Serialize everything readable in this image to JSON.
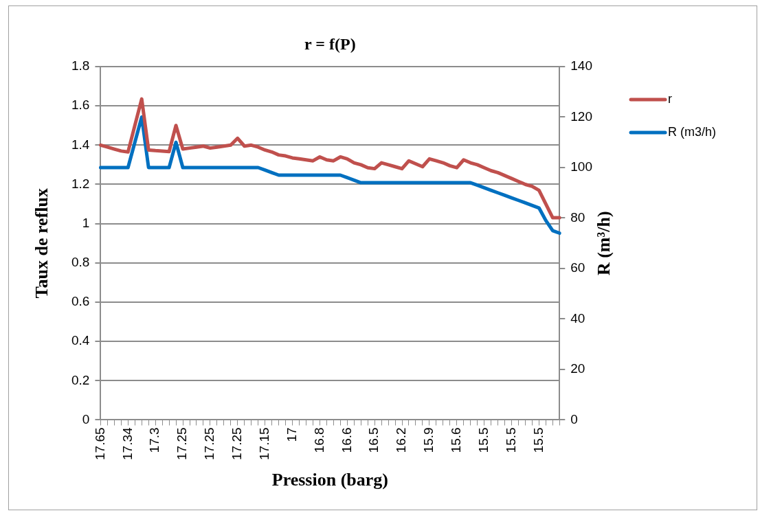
{
  "chart_data": {
    "type": "line",
    "title": "r = f(P)",
    "xlabel": "Pression (barg)",
    "ylabel": "Taux de reflux",
    "y2label": "R (m³/h)",
    "categories": [
      "17.65",
      null,
      null,
      null,
      "17.34",
      null,
      null,
      null,
      "17.3",
      null,
      null,
      null,
      "17.25",
      null,
      null,
      null,
      "17.25",
      null,
      null,
      null,
      "17.25",
      null,
      null,
      null,
      "17.15",
      null,
      null,
      null,
      "17",
      null,
      null,
      null,
      "16.8",
      null,
      null,
      null,
      "16.6",
      null,
      null,
      null,
      "16.5",
      null,
      null,
      null,
      "16.2",
      null,
      null,
      null,
      "15.9",
      null,
      null,
      null,
      "15.6",
      null,
      null,
      null,
      "15.5",
      null,
      null,
      null,
      "15.5",
      null,
      null,
      null,
      "15.5",
      null,
      null,
      null
    ],
    "series": [
      {
        "name": "r",
        "color": "#c0504d",
        "values": [
          1.4,
          1.39,
          1.38,
          1.37,
          1.365,
          1.5,
          1.635,
          1.375,
          1.372,
          1.37,
          1.367,
          1.5,
          1.38,
          1.385,
          1.39,
          1.395,
          1.385,
          1.39,
          1.395,
          1.4,
          1.435,
          1.395,
          1.4,
          1.39,
          1.375,
          1.365,
          1.35,
          1.345,
          1.335,
          1.33,
          1.325,
          1.32,
          1.34,
          1.325,
          1.32,
          1.34,
          1.33,
          1.31,
          1.3,
          1.285,
          1.28,
          1.31,
          1.3,
          1.29,
          1.28,
          1.32,
          1.305,
          1.29,
          1.33,
          1.32,
          1.31,
          1.295,
          1.285,
          1.325,
          1.31,
          1.3,
          1.285,
          1.27,
          1.26,
          1.245,
          1.23,
          1.215,
          1.2,
          1.19,
          1.17,
          1.1,
          1.03,
          1.03
        ]
      },
      {
        "name": "R (m3/h)",
        "color": "#0070c0",
        "axis": "y2",
        "values": [
          100,
          100,
          100,
          100,
          100,
          110,
          120,
          100,
          100,
          100,
          100,
          110,
          100,
          100,
          100,
          100,
          100,
          100,
          100,
          100,
          100,
          100,
          100,
          100,
          99,
          98,
          97,
          97,
          97,
          97,
          97,
          97,
          97,
          97,
          97,
          97,
          96,
          95,
          94,
          94,
          94,
          94,
          94,
          94,
          94,
          94,
          94,
          94,
          94,
          94,
          94,
          94,
          94,
          94,
          94,
          93,
          92,
          91,
          90,
          89,
          88,
          87,
          86,
          85,
          84,
          79,
          75,
          74
        ]
      }
    ],
    "ylim": [
      0,
      1.8
    ],
    "yticks": [
      0,
      0.2,
      0.4,
      0.6,
      0.8,
      1,
      1.2,
      1.4,
      1.6,
      1.8
    ],
    "y2lim": [
      0,
      140
    ],
    "y2ticks": [
      0,
      20,
      40,
      60,
      80,
      100,
      120,
      140
    ],
    "grid": "y",
    "legend": "right",
    "marker": "none",
    "line_style": "solid"
  }
}
